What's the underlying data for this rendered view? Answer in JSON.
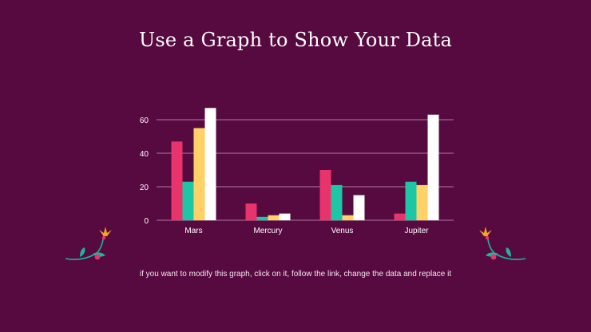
{
  "slide": {
    "title": "Use a Graph to Show Your Data",
    "note": "if you want to modify this graph, click on it, follow the link, change the data and replace it"
  },
  "colors": {
    "background": "#560a40",
    "gridline": "#b07aa0",
    "axis_text": "#ffffff",
    "series": [
      "#e8336b",
      "#1dc7a5",
      "#ffd166",
      "#ffffff"
    ],
    "flower_stem": "#1fb59a",
    "flower_petal": "#e8336b",
    "flower_bloom": "#f5a623"
  },
  "decorations": {
    "left": "flower-sprig-icon",
    "right": "flower-sprig-icon"
  },
  "chart_data": {
    "type": "bar",
    "categories": [
      "Mars",
      "Mercury",
      "Venus",
      "Jupiter"
    ],
    "series": [
      {
        "values": [
          47,
          10,
          30,
          4
        ]
      },
      {
        "values": [
          23,
          2,
          21,
          23
        ]
      },
      {
        "values": [
          55,
          3,
          3,
          21
        ]
      },
      {
        "values": [
          67,
          4,
          15,
          63
        ]
      }
    ],
    "ylim": [
      0,
      70
    ],
    "yticks": [
      0,
      20,
      40,
      60
    ],
    "grid": true,
    "legend": "none"
  }
}
